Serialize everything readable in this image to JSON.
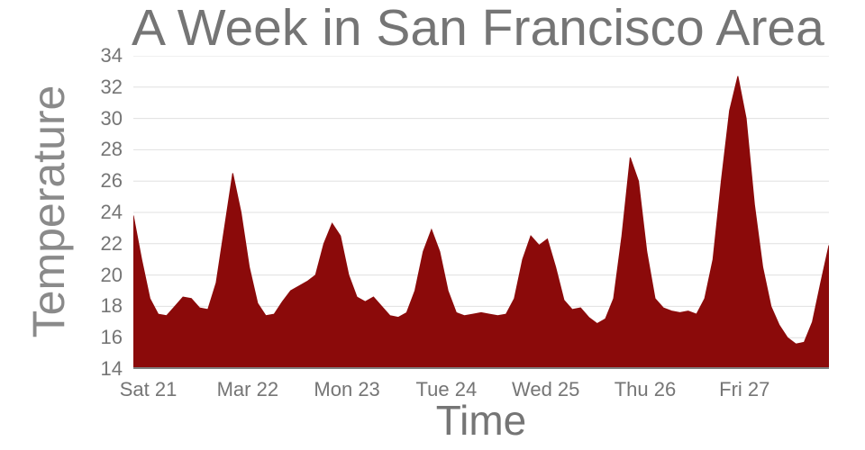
{
  "chart_data": {
    "type": "area",
    "title": "A Week in San Francisco Area",
    "xlabel": "Time",
    "ylabel": "Temperature",
    "x_tick_labels": [
      "Sat 21",
      "Mar 22",
      "Mon 23",
      "Tue 24",
      "Wed 25",
      "Thu 26",
      "Fri 27"
    ],
    "x_tick_positions": [
      0.15,
      1.15,
      2.15,
      3.15,
      4.15,
      5.15,
      6.15
    ],
    "y_ticks": [
      14,
      16,
      18,
      20,
      22,
      24,
      26,
      28,
      30,
      32,
      34
    ],
    "xlim": [
      0,
      7
    ],
    "ylim": [
      14,
      34
    ],
    "grid": "horizontal",
    "legend": false,
    "fill_color": "#8B0A0A",
    "x": [
      0,
      0.0833,
      0.1667,
      0.25,
      0.3333,
      0.4167,
      0.5,
      0.5833,
      0.6667,
      0.75,
      0.8333,
      0.9167,
      1,
      1.0833,
      1.1667,
      1.25,
      1.3333,
      1.4167,
      1.5,
      1.5833,
      1.6667,
      1.75,
      1.8333,
      1.9167,
      2,
      2.0833,
      2.1667,
      2.25,
      2.3333,
      2.4167,
      2.5,
      2.5833,
      2.6667,
      2.75,
      2.8333,
      2.9167,
      3,
      3.0833,
      3.1667,
      3.25,
      3.3333,
      3.4167,
      3.5,
      3.5833,
      3.6667,
      3.75,
      3.8333,
      3.9167,
      4,
      4.0833,
      4.1667,
      4.25,
      4.3333,
      4.4167,
      4.5,
      4.5833,
      4.6667,
      4.75,
      4.8333,
      4.9167,
      5,
      5.0833,
      5.1667,
      5.25,
      5.3333,
      5.4167,
      5.5,
      5.5833,
      5.6667,
      5.75,
      5.8333,
      5.9167,
      6,
      6.0833,
      6.1667,
      6.25,
      6.3333,
      6.4167,
      6.5,
      6.5833,
      6.6667,
      6.75,
      6.8333,
      6.9167,
      7
    ],
    "y": [
      23.8,
      21.0,
      18.5,
      17.5,
      17.4,
      18.0,
      18.6,
      18.5,
      17.9,
      17.8,
      19.5,
      23.0,
      26.5,
      24.0,
      20.5,
      18.2,
      17.4,
      17.5,
      18.3,
      19.0,
      19.3,
      19.6,
      20.0,
      22.0,
      23.3,
      22.5,
      20.0,
      18.6,
      18.3,
      18.6,
      18.0,
      17.4,
      17.3,
      17.6,
      19.0,
      21.5,
      22.9,
      21.5,
      19.0,
      17.6,
      17.4,
      17.5,
      17.6,
      17.5,
      17.4,
      17.5,
      18.5,
      21.0,
      22.5,
      21.9,
      22.3,
      20.5,
      18.4,
      17.8,
      17.9,
      17.3,
      16.9,
      17.2,
      18.5,
      22.5,
      27.5,
      26.0,
      21.5,
      18.5,
      17.9,
      17.7,
      17.6,
      17.7,
      17.5,
      18.5,
      21.0,
      26.0,
      30.5,
      32.7,
      30.0,
      24.5,
      20.5,
      18.0,
      16.8,
      16.0,
      15.6,
      15.7,
      17.0,
      19.5,
      21.9
    ]
  },
  "colors": {
    "fill": "#8B0A0A",
    "grid": "#e0e0e0",
    "axis": "#7f7f7f",
    "text": "#757575",
    "background": "#ffffff"
  }
}
